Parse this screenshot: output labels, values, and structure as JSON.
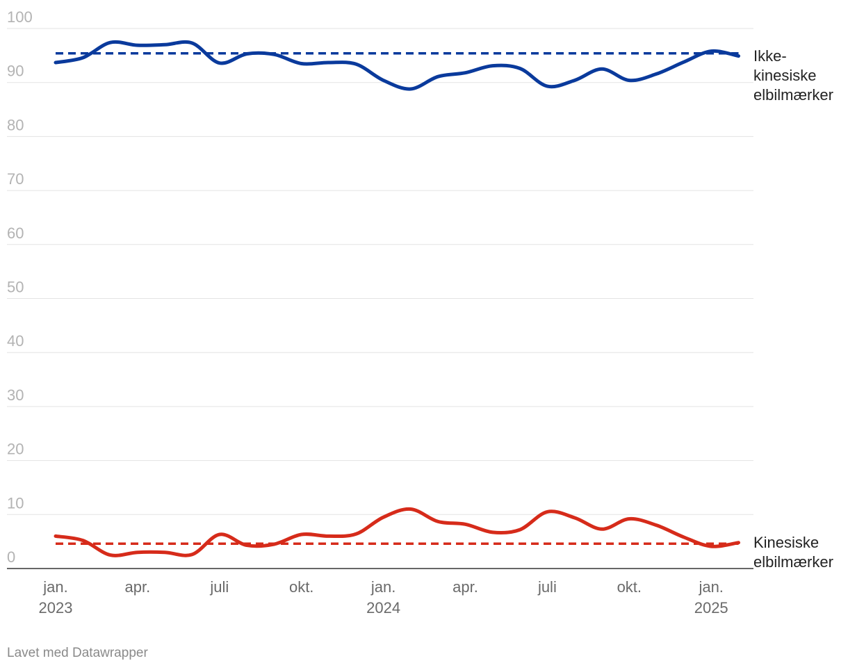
{
  "chart_data": {
    "type": "line",
    "ylim": [
      0,
      100
    ],
    "y_ticks": [
      {
        "value": 0,
        "label": "0"
      },
      {
        "value": 10,
        "label": "10"
      },
      {
        "value": 20,
        "label": "20"
      },
      {
        "value": 30,
        "label": "30"
      },
      {
        "value": 40,
        "label": "40"
      },
      {
        "value": 50,
        "label": "50"
      },
      {
        "value": 60,
        "label": "60"
      },
      {
        "value": 70,
        "label": "70"
      },
      {
        "value": 80,
        "label": "80"
      },
      {
        "value": 90,
        "label": "90"
      },
      {
        "value": 100,
        "label": "100"
      }
    ],
    "x": [
      "2023-01",
      "2023-02",
      "2023-03",
      "2023-04",
      "2023-05",
      "2023-06",
      "2023-07",
      "2023-08",
      "2023-09",
      "2023-10",
      "2023-11",
      "2023-12",
      "2024-01",
      "2024-02",
      "2024-03",
      "2024-04",
      "2024-05",
      "2024-06",
      "2024-07",
      "2024-08",
      "2024-09",
      "2024-10",
      "2024-11",
      "2024-12",
      "2025-01",
      "2025-02"
    ],
    "x_ticks": [
      {
        "x": "2023-01",
        "label": "jan.",
        "sublabel": "2023"
      },
      {
        "x": "2023-04",
        "label": "apr.",
        "sublabel": ""
      },
      {
        "x": "2023-07",
        "label": "juli",
        "sublabel": ""
      },
      {
        "x": "2023-10",
        "label": "okt.",
        "sublabel": ""
      },
      {
        "x": "2024-01",
        "label": "jan.",
        "sublabel": "2024"
      },
      {
        "x": "2024-04",
        "label": "apr.",
        "sublabel": ""
      },
      {
        "x": "2024-07",
        "label": "juli",
        "sublabel": ""
      },
      {
        "x": "2024-10",
        "label": "okt.",
        "sublabel": ""
      },
      {
        "x": "2025-01",
        "label": "jan.",
        "sublabel": "2025"
      }
    ],
    "series": [
      {
        "name": "Ikke-kinesiske elbilmærker",
        "label_lines": [
          "Ikke-",
          "kinesiske",
          "elbilmærker"
        ],
        "color": "#0a3a9c",
        "values": [
          93.7,
          94.6,
          97.4,
          96.9,
          97.0,
          97.3,
          93.6,
          95.3,
          95.2,
          93.5,
          93.7,
          93.4,
          90.4,
          88.8,
          91.1,
          91.8,
          93.1,
          92.6,
          89.3,
          90.4,
          92.5,
          90.4,
          91.6,
          93.8,
          95.8,
          94.9
        ]
      },
      {
        "name": "Kinesiske elbilmærker",
        "label_lines": [
          "Kinesiske",
          "elbilmærker"
        ],
        "color": "#d62b1a",
        "values": [
          6.0,
          5.2,
          2.5,
          3.0,
          3.0,
          2.6,
          6.3,
          4.3,
          4.5,
          6.3,
          6.0,
          6.4,
          9.5,
          11.0,
          8.7,
          8.2,
          6.7,
          7.2,
          10.5,
          9.4,
          7.3,
          9.2,
          8.0,
          5.8,
          4.1,
          4.8
        ]
      }
    ],
    "averages": [
      {
        "series": "Ikke-kinesiske elbilmærker",
        "value": 95.4,
        "color": "#0a3a9c",
        "style": "dashed"
      },
      {
        "series": "Kinesiske elbilmærker",
        "value": 4.6,
        "color": "#d62b1a",
        "style": "dashed"
      }
    ],
    "grid": true,
    "legend": "direct-labels-right"
  },
  "footer": {
    "credit": "Lavet med Datawrapper"
  }
}
